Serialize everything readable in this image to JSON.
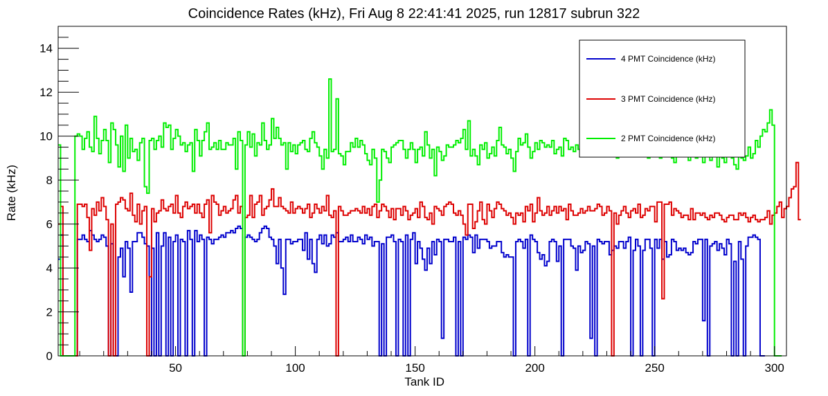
{
  "chart_data": {
    "type": "line",
    "title": "Coincidence Rates (kHz), Fri Aug  8 22:41:41 2025, run 12817 subrun 322",
    "xlabel": "Tank ID",
    "ylabel": "Rate (kHz)",
    "xlim": [
      1,
      305
    ],
    "ylim": [
      0,
      15
    ],
    "x_ticks": [
      50,
      100,
      150,
      200,
      250,
      300
    ],
    "y_ticks": [
      0,
      2,
      4,
      6,
      8,
      10,
      12,
      14
    ],
    "grid": false,
    "legend_position": "top-right",
    "step_histogram": true,
    "series": [
      {
        "name": "4 PMT Coincidence (kHz)",
        "color": "#0000cc",
        "x_start": 1,
        "values": [
          4.4,
          5.5,
          0,
          0,
          0,
          0,
          0,
          0,
          5.3,
          5.3,
          5.5,
          5.3,
          5.2,
          5.7,
          5.5,
          5.3,
          5.2,
          5.3,
          5.5,
          5.4,
          5.0,
          0,
          5.1,
          0,
          0,
          4.5,
          4.9,
          3.6,
          5.2,
          4.9,
          2.9,
          5.2,
          5.2,
          5.6,
          5.6,
          5.4,
          5.1,
          5.0,
          0,
          4.9,
          0,
          5.6,
          0,
          5.0,
          5.6,
          0,
          5.4,
          0,
          5.2,
          5.5,
          0,
          5.3,
          5.2,
          0,
          5.7,
          5.3,
          0,
          5.7,
          5.2,
          5.5,
          5.3,
          0,
          5.4,
          5.3,
          5.1,
          5.3,
          5.3,
          5.4,
          5.5,
          5.4,
          5.6,
          5.6,
          5.7,
          5.6,
          5.8,
          5.9,
          5.8,
          0,
          5.4,
          5.5,
          5.4,
          5.3,
          5.2,
          5.3,
          5.6,
          5.8,
          5.9,
          5.8,
          5.4,
          5.3,
          5.0,
          4.2,
          5.3,
          4.0,
          2.8,
          5.3,
          5.3,
          5.1,
          5.2,
          5.2,
          5.3,
          5.3,
          4.8,
          5.6,
          4.4,
          5.3,
          4.2,
          3.8,
          5.3,
          5.5,
          5.1,
          5.5,
          5.0,
          5.1,
          5.5,
          5.4,
          5.6,
          5.2,
          5.2,
          5.3,
          5.4,
          5.2,
          5.5,
          5.2,
          5.2,
          5.4,
          5.3,
          5.1,
          5.5,
          5.3,
          5.4,
          5.0,
          5.2,
          5.2,
          0,
          5.1,
          0,
          5.4,
          5.4,
          5.5,
          5.2,
          0,
          5.3,
          5.2,
          0,
          5.5,
          0,
          5.3,
          5.6,
          4.2,
          5.2,
          4.9,
          4.4,
          3.9,
          4.9,
          4.2,
          5.2,
          4.6,
          5.3,
          5.2,
          0.8,
          5.3,
          5.3,
          5.2,
          5.2,
          5.4,
          0,
          5.2,
          0,
          5.4,
          5.3,
          5.5,
          5.4,
          4.7,
          5.5,
          4.9,
          5.3,
          5.3,
          5.3,
          5.2,
          4.9,
          5.0,
          5.0,
          5.2,
          5.2,
          4.7,
          4.5,
          4.6,
          4.5,
          4.5,
          0,
          5.2,
          5.3,
          5.2,
          4.9,
          5.3,
          0,
          5.5,
          5.3,
          5.2,
          4.7,
          4.4,
          4.6,
          4.1,
          4.3,
          5.2,
          5.3,
          5.2,
          4.3,
          5.0,
          0,
          5.3,
          5.3,
          5.3,
          5.0,
          4.9,
          3.9,
          5.0,
          4.7,
          4.8,
          5.2,
          5.1,
          0.8,
          5.0,
          0,
          5.3,
          5.2,
          5.1,
          5.2,
          5.2,
          4.6,
          4.8,
          5.0,
          4.9,
          5.2,
          5.2,
          4.9,
          5.2,
          5.4,
          0,
          4.8,
          5.3,
          5.0,
          0,
          4.8,
          5.3,
          5.3,
          4.9,
          0,
          5.3,
          4.9,
          5.3,
          4.4,
          5.2,
          4.5,
          4.6,
          5.3,
          5.2,
          4.8,
          4.9,
          4.8,
          4.9,
          4.7,
          4.6,
          4.7,
          5.2,
          5.1,
          5.3,
          5.3,
          1.6,
          5.3,
          0,
          5.0,
          5.1,
          5.2,
          4.8,
          5.1,
          4.9,
          4.6,
          5.3,
          5.1,
          0,
          4.3,
          0,
          5.2,
          4.4,
          0,
          5.0,
          5.4,
          5.4,
          5.5,
          5.4,
          5.3,
          0,
          0
        ],
        "legend": "4 PMT Coincidence (kHz)"
      },
      {
        "name": "3 PMT Coincidence (kHz)",
        "color": "#dd0000",
        "x_start": 1,
        "values": [
          6.0,
          6.8,
          0,
          0,
          0,
          0,
          0,
          0,
          6.9,
          6.9,
          6.8,
          6.9,
          6.3,
          4.8,
          6.7,
          6.4,
          7.0,
          6.6,
          7.2,
          6.8,
          6.2,
          0,
          6.0,
          0,
          6.9,
          7.0,
          7.2,
          7.1,
          6.7,
          6.6,
          7.4,
          6.4,
          6.1,
          6.9,
          6.0,
          6.6,
          6.8,
          0,
          3.6,
          6.7,
          6.1,
          6.5,
          6.6,
          7.1,
          6.7,
          6.6,
          6.8,
          6.9,
          6.5,
          7.3,
          6.5,
          6.3,
          6.8,
          7.0,
          6.7,
          6.8,
          6.9,
          6.5,
          6.9,
          6.5,
          6.3,
          6.9,
          7.1,
          5.6,
          7.3,
          7.0,
          6.9,
          6.4,
          6.6,
          6.8,
          6.5,
          6.6,
          6.7,
          7.1,
          7.3,
          6.5,
          6.8,
          0,
          6.3,
          6.4,
          7.3,
          6.3,
          6.9,
          7.0,
          7.3,
          6.4,
          6.7,
          6.8,
          7.1,
          7.6,
          6.8,
          6.8,
          7.2,
          6.8,
          6.7,
          6.6,
          6.5,
          7.0,
          6.5,
          6.7,
          6.8,
          6.7,
          6.5,
          6.7,
          6.9,
          6.3,
          6.5,
          6.9,
          6.7,
          6.5,
          6.8,
          6.6,
          7.3,
          6.4,
          6.3,
          6.6,
          0,
          6.8,
          6.6,
          6.4,
          6.4,
          6.5,
          6.6,
          6.6,
          6.7,
          6.6,
          6.5,
          6.8,
          6.5,
          6.7,
          6.4,
          6.8,
          6.9,
          6.3,
          6.6,
          6.9,
          6.8,
          6.6,
          6.3,
          6.7,
          6.2,
          6.7,
          6.7,
          6.4,
          6.8,
          6.6,
          6.2,
          6.4,
          6.5,
          6.7,
          6.3,
          7.0,
          6.8,
          6.3,
          6.2,
          6.5,
          6.0,
          6.8,
          6.7,
          6.6,
          6.4,
          6.8,
          6.9,
          7.0,
          6.9,
          6.5,
          6.4,
          6.6,
          6.4,
          6.0,
          5.5,
          6.9,
          6.9,
          5.8,
          6.1,
          6.6,
          7.0,
          6.2,
          6.0,
          6.9,
          6.6,
          6.3,
          6.7,
          7.0,
          6.9,
          6.7,
          6.6,
          6.4,
          6.5,
          6.3,
          6.0,
          6.5,
          6.4,
          6.5,
          6.1,
          6.8,
          6.6,
          6.9,
          6.1,
          6.5,
          7.2,
          6.6,
          6.4,
          6.5,
          6.8,
          6.4,
          6.6,
          6.8,
          6.5,
          6.8,
          6.6,
          6.7,
          6.2,
          6.9,
          6.6,
          6.4,
          6.4,
          6.5,
          6.7,
          6.5,
          6.6,
          6.8,
          6.6,
          6.6,
          6.7,
          6.9,
          6.8,
          6.4,
          6.5,
          6.8,
          6.6,
          0,
          6.5,
          6.0,
          6.4,
          6.6,
          6.8,
          6.5,
          6.3,
          6.6,
          6.7,
          6.5,
          6.9,
          6.3,
          6.4,
          6.7,
          6.6,
          6.8,
          6.8,
          6.1,
          7.0,
          7.0,
          2.6,
          6.9,
          6.9,
          7.0,
          6.4,
          6.7,
          6.6,
          6.5,
          6.3,
          6.4,
          6.4,
          6.2,
          6.7,
          6.2,
          6.5,
          6.5,
          6.4,
          6.5,
          6.3,
          6.2,
          6.4,
          6.3,
          6.5,
          6.5,
          6.4,
          6.2,
          6.1,
          6.3,
          6.4,
          6.4,
          6.2,
          6.2,
          6.5,
          6.4,
          6.5,
          6.3,
          6.1,
          6.3,
          6.4,
          6.2,
          6.1,
          6.2,
          6.2,
          6.3,
          6.6,
          6.0,
          6.4,
          6.5,
          6.8,
          7.0,
          6.3,
          6.7,
          6.8,
          7.2,
          7.6,
          7.7,
          8.8,
          6.2
        ],
        "legend": "3 PMT Coincidence (kHz)"
      },
      {
        "name": "2 PMT Coincidence (kHz)",
        "color": "#00ee00",
        "x_start": 1,
        "values": [
          9.6,
          0,
          0,
          0,
          0,
          0,
          0,
          10.0,
          10.1,
          10.0,
          9.4,
          9.9,
          10.2,
          9.5,
          9.3,
          10.9,
          9.9,
          9.2,
          9.8,
          10.3,
          9.8,
          8.8,
          10.6,
          10.3,
          9.6,
          8.6,
          10.0,
          8.4,
          10.5,
          9.0,
          9.9,
          9.3,
          9.4,
          8.9,
          9.7,
          9.9,
          7.7,
          7.4,
          9.8,
          9.9,
          9.4,
          9.8,
          10.0,
          9.5,
          10.6,
          10.4,
          10.5,
          9.4,
          9.9,
          10.3,
          10.0,
          9.6,
          9.7,
          9.3,
          9.6,
          9.7,
          8.4,
          10.3,
          9.8,
          9.1,
          9.8,
          10.2,
          10.6,
          9.4,
          9.5,
          9.7,
          9.4,
          9.8,
          9.4,
          9.4,
          9.7,
          9.6,
          9.6,
          9.9,
          8.5,
          10.2,
          9.8,
          0,
          9.6,
          10.2,
          9.5,
          10.1,
          9.1,
          9.7,
          9.6,
          10.6,
          9.8,
          9.4,
          9.6,
          10.8,
          9.9,
          10.4,
          9.9,
          9.6,
          9.7,
          8.5,
          9.7,
          9.3,
          9.6,
          9.2,
          9.6,
          9.7,
          9.8,
          9.4,
          9.3,
          9.9,
          10.2,
          9.7,
          9.5,
          9.1,
          8.5,
          9.4,
          9.0,
          12.6,
          9.3,
          9.4,
          11.7,
          9.2,
          9.1,
          8.7,
          9.3,
          9.3,
          9.7,
          9.5,
          9.9,
          9.5,
          9.8,
          9.6,
          9.2,
          8.9,
          8.7,
          9.4,
          9.0,
          7.0,
          8.0,
          9.4,
          9.3,
          9.0,
          8.8,
          9.5,
          9.6,
          9.7,
          9.8,
          9.8,
          9.4,
          9.0,
          9.4,
          9.7,
          9.4,
          8.8,
          9.4,
          9.5,
          9.1,
          10.2,
          9.6,
          9.0,
          9.4,
          8.2,
          9.5,
          9.3,
          8.9,
          9.1,
          9.6,
          9.5,
          9.5,
          9.6,
          9.8,
          9.7,
          9.9,
          10.3,
          9.4,
          10.7,
          9.1,
          9.4,
          9.1,
          8.7,
          9.6,
          9.4,
          9.7,
          9.0,
          9.2,
          9.5,
          9.1,
          9.8,
          10.4,
          9.6,
          9.5,
          9.2,
          9.4,
          9.0,
          8.4,
          9.3,
          9.9,
          9.6,
          9.7,
          10.1,
          9.5,
          9.0,
          9.3,
          9.7,
          9.4,
          9.8,
          9.7,
          9.5,
          9.6,
          9.5,
          9.8,
          9.2,
          9.4,
          9.5,
          9.1,
          9.9,
          9.8,
          9.4,
          9.5,
          9.3,
          9.6,
          9.4,
          9.1,
          9.2,
          9.6,
          9.3,
          9.5,
          9.4,
          9.7,
          9.1,
          9.5,
          9.3,
          9.6,
          9.5,
          9.2,
          9.3,
          9.4,
          9.0,
          9.5,
          9.6,
          9.2,
          9.1,
          9.4,
          9.3,
          9.6,
          9.4,
          9.2,
          9.5,
          9.3,
          9.1,
          9.0,
          9.4,
          9.2,
          9.5,
          9.3,
          9.0,
          9.3,
          9.1,
          9.2,
          9.4,
          9.0,
          8.8,
          9.3,
          9.2,
          9.1,
          9.3,
          9.2,
          8.9,
          9.3,
          9.1,
          9.0,
          9.2,
          9.4,
          8.8,
          9.2,
          9.1,
          8.9,
          9.3,
          9.1,
          8.6,
          9.2,
          9.0,
          8.8,
          9.1,
          9.3,
          9.0,
          8.7,
          8.5,
          9.4,
          9.0,
          8.9,
          9.1,
          9.5,
          9.0,
          9.2,
          9.8,
          9.5,
          10.0,
          10.3,
          10.2,
          10.6,
          11.2,
          10.5,
          0,
          0,
          0
        ],
        "legend": "2 PMT Coincidence (kHz)"
      }
    ]
  }
}
